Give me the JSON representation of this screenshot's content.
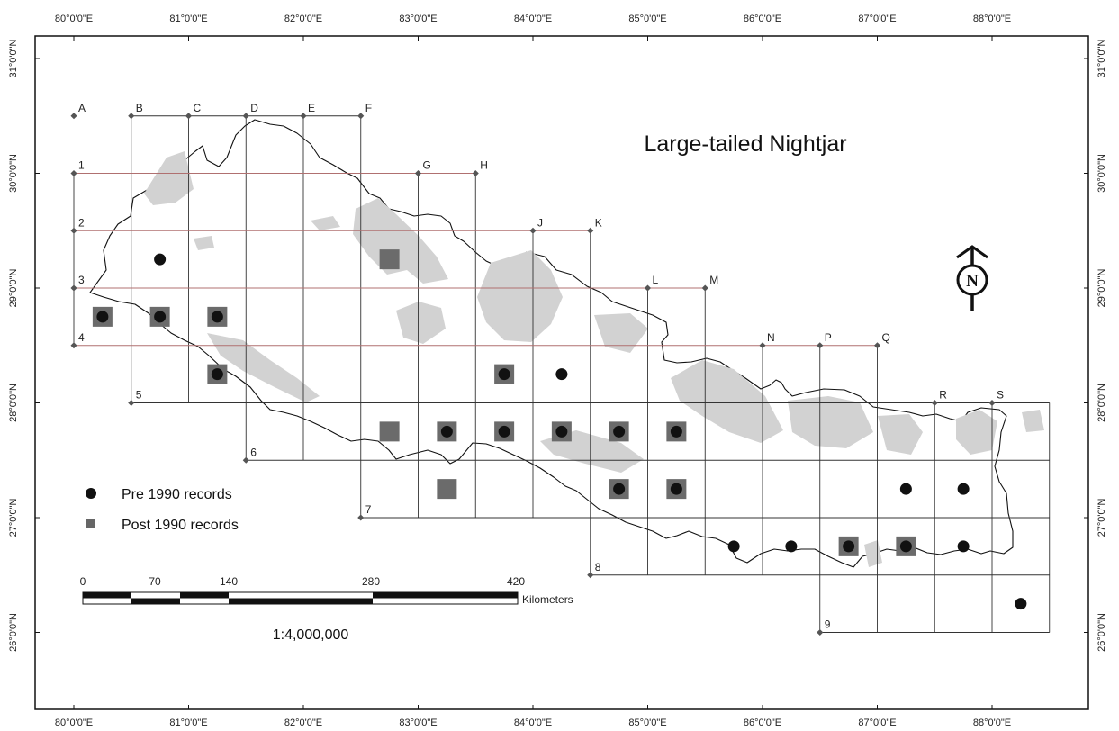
{
  "title": "Large-tailed Nightjar",
  "north_arrow": {
    "letter": "N"
  },
  "legend": [
    {
      "label": "Pre 1990 records",
      "symbol": "circle"
    },
    {
      "label": "Post 1990 records",
      "symbol": "square"
    }
  ],
  "scale_bar": {
    "ticks": [
      "0",
      "70",
      "140",
      "280",
      "420"
    ],
    "unit": "Kilometers",
    "ratio": "1:4,000,000"
  },
  "graticule": {
    "lon_labels": [
      "80°0'0\"E",
      "81°0'0\"E",
      "82°0'0\"E",
      "83°0'0\"E",
      "84°0'0\"E",
      "85°0'0\"E",
      "86°0'0\"E",
      "87°0'0\"E",
      "88°0'0\"E"
    ],
    "lat_labels": [
      "31°0'0\"N",
      "30°0'0\"N",
      "29°0'0\"N",
      "28°0'0\"N",
      "27°0'0\"N",
      "26°0'0\"N"
    ]
  },
  "grid": {
    "column_labels": [
      "A",
      "B",
      "C",
      "D",
      "E",
      "F",
      "G",
      "H",
      "J",
      "K",
      "L",
      "M",
      "N",
      "P",
      "Q",
      "R",
      "S"
    ],
    "row_labels": [
      "1",
      "2",
      "3",
      "4",
      "5",
      "6",
      "7",
      "8",
      "9"
    ]
  },
  "records": {
    "pre_1990": [
      {
        "lon": 80.25,
        "lat": 28.75
      },
      {
        "lon": 80.75,
        "lat": 29.25
      },
      {
        "lon": 80.75,
        "lat": 28.75
      },
      {
        "lon": 81.25,
        "lat": 28.75
      },
      {
        "lon": 81.25,
        "lat": 28.25
      },
      {
        "lon": 83.25,
        "lat": 27.75
      },
      {
        "lon": 83.75,
        "lat": 28.25
      },
      {
        "lon": 83.75,
        "lat": 27.75
      },
      {
        "lon": 84.25,
        "lat": 28.25
      },
      {
        "lon": 84.25,
        "lat": 27.75
      },
      {
        "lon": 84.75,
        "lat": 27.75
      },
      {
        "lon": 84.75,
        "lat": 27.25
      },
      {
        "lon": 85.25,
        "lat": 27.75
      },
      {
        "lon": 85.25,
        "lat": 27.25
      },
      {
        "lon": 85.75,
        "lat": 26.75
      },
      {
        "lon": 86.25,
        "lat": 26.75
      },
      {
        "lon": 86.75,
        "lat": 26.75
      },
      {
        "lon": 87.25,
        "lat": 27.25
      },
      {
        "lon": 87.25,
        "lat": 26.75
      },
      {
        "lon": 87.75,
        "lat": 27.25
      },
      {
        "lon": 87.75,
        "lat": 26.75
      },
      {
        "lon": 88.25,
        "lat": 26.25
      }
    ],
    "post_1990": [
      {
        "lon": 80.25,
        "lat": 28.75
      },
      {
        "lon": 80.75,
        "lat": 28.75
      },
      {
        "lon": 81.25,
        "lat": 28.75
      },
      {
        "lon": 81.25,
        "lat": 28.25
      },
      {
        "lon": 82.75,
        "lat": 29.25
      },
      {
        "lon": 82.75,
        "lat": 27.75
      },
      {
        "lon": 83.25,
        "lat": 27.75
      },
      {
        "lon": 83.25,
        "lat": 27.25
      },
      {
        "lon": 83.75,
        "lat": 28.25
      },
      {
        "lon": 83.75,
        "lat": 27.75
      },
      {
        "lon": 84.25,
        "lat": 27.75
      },
      {
        "lon": 84.75,
        "lat": 27.75
      },
      {
        "lon": 84.75,
        "lat": 27.25
      },
      {
        "lon": 85.25,
        "lat": 27.75
      },
      {
        "lon": 85.25,
        "lat": 27.25
      },
      {
        "lon": 86.75,
        "lat": 26.75
      },
      {
        "lon": 87.25,
        "lat": 26.75
      }
    ]
  }
}
